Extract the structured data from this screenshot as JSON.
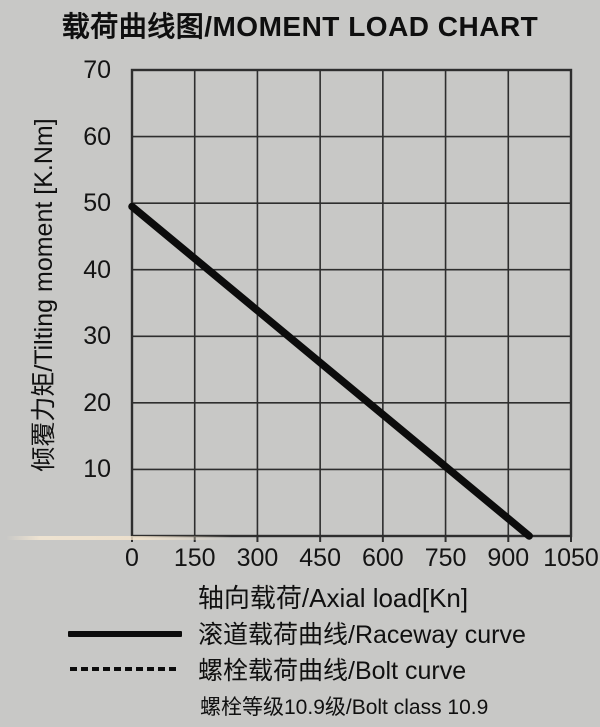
{
  "title": "载荷曲线图/MOMENT LOAD CHART",
  "chart_data": {
    "type": "line",
    "title": "载荷曲线图/MOMENT LOAD CHART",
    "xlabel": "轴向载荷/Axial load[Kn]",
    "ylabel": "倾覆力矩/Tilting moment [K.Nm]",
    "xlim": [
      0,
      1050
    ],
    "ylim": [
      0,
      70
    ],
    "xticks": [
      0,
      150,
      300,
      450,
      600,
      750,
      900,
      1050
    ],
    "yticks": [
      10,
      20,
      30,
      40,
      50,
      60,
      70
    ],
    "grid": true,
    "legend_position": "bottom-left",
    "series": [
      {
        "name": "滚道载荷曲线/Raceway curve",
        "style": "solid",
        "points": [
          [
            0,
            49.5
          ],
          [
            950,
            0
          ]
        ]
      },
      {
        "name": "螺栓载荷曲线/Bolt curve",
        "style": "dashed",
        "points": []
      }
    ],
    "note": "螺栓等级10.9级/Bolt class 10.9"
  },
  "legend": {
    "items": [
      {
        "label": "滚道载荷曲线/Raceway curve",
        "line": "solid"
      },
      {
        "label": "螺栓载荷曲线/Bolt curve",
        "line": "dashed"
      }
    ],
    "note": "螺栓等级10.9级/Bolt class 10.9"
  },
  "colors": {
    "background": "#c8c8c6",
    "grid": "#2e2e2e",
    "curve": "#0c0c0c",
    "text": "#101010"
  }
}
